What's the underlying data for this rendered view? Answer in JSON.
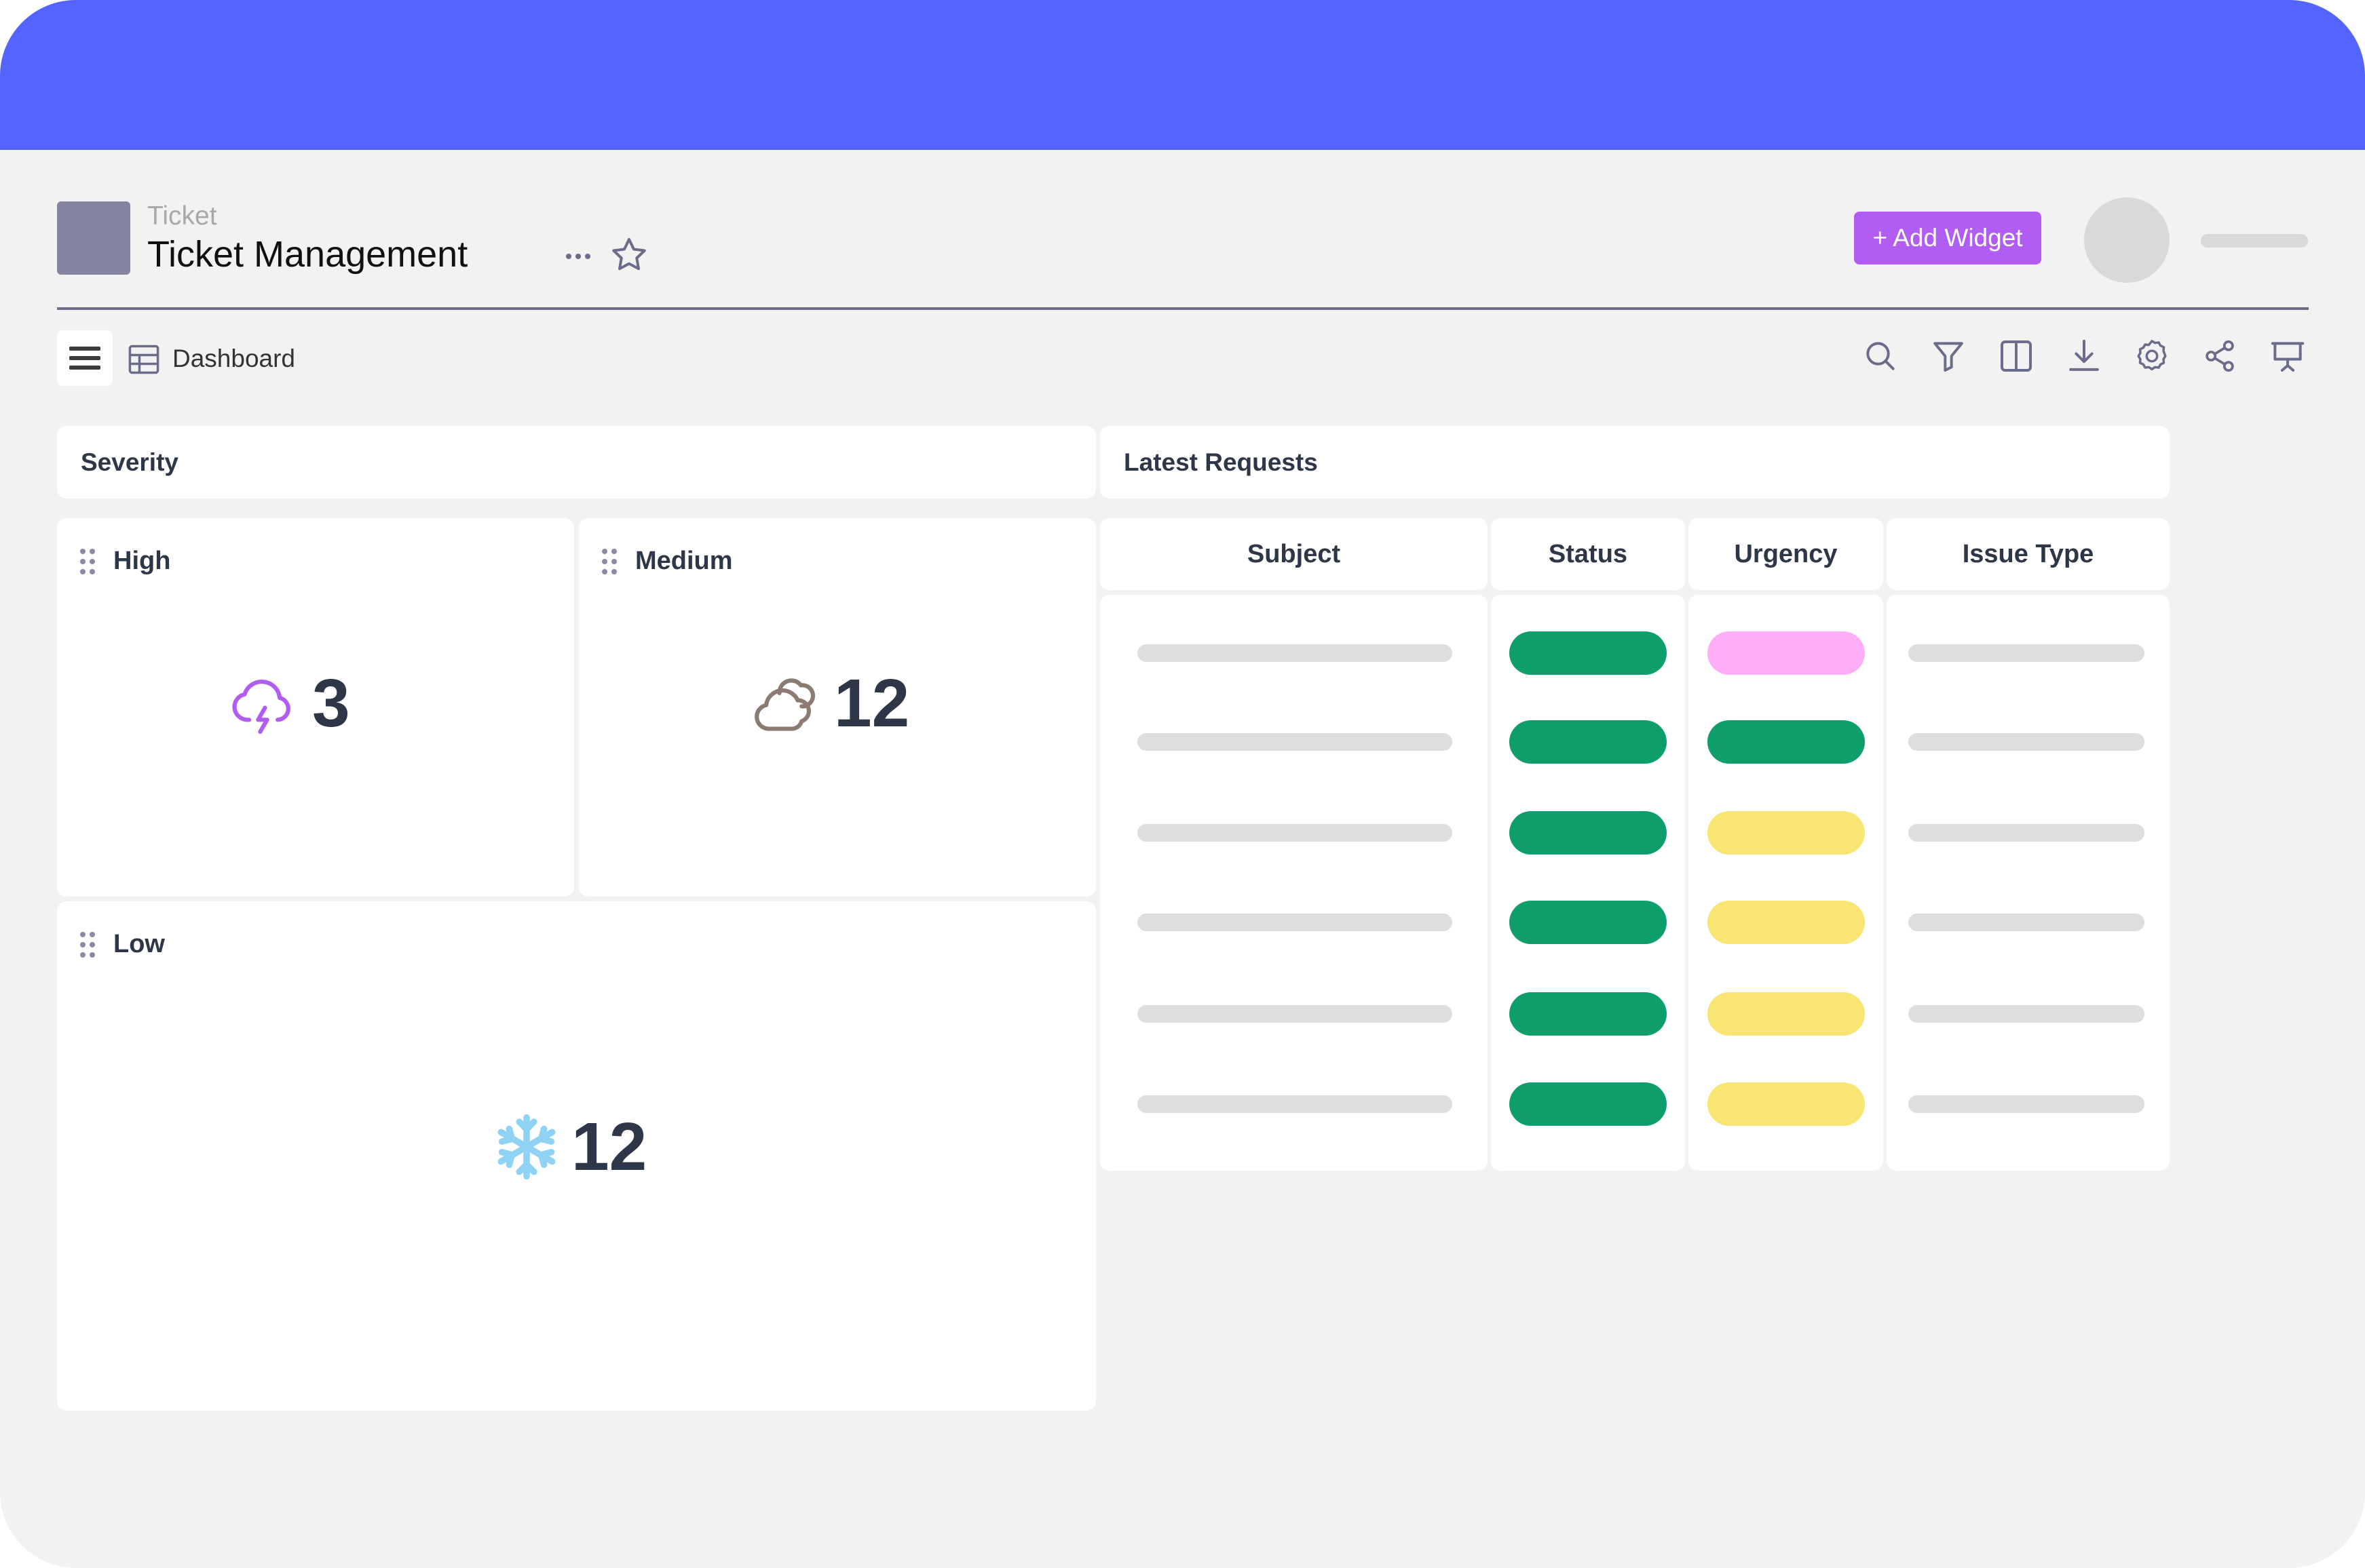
{
  "colors": {
    "topbar": "#5465ff",
    "add_widget": "#b15cf2",
    "status_green": "#0e9e6a",
    "urgency_pink": "#fdaef6",
    "urgency_green": "#0e9e6a",
    "urgency_yellow": "#f9e574",
    "placeholder_gray": "#dedede"
  },
  "header": {
    "breadcrumb": "Ticket",
    "title": "Ticket Management",
    "more_icon": "more-horizontal-icon",
    "star_icon": "star-icon",
    "add_widget_label": "+ Add Widget"
  },
  "toolbar": {
    "menu_icon": "hamburger-menu-icon",
    "view_icon": "table-grid-icon",
    "view_label": "Dashboard",
    "icons": [
      "search-icon",
      "filter-icon",
      "split-view-icon",
      "download-icon",
      "settings-icon",
      "share-icon",
      "presentation-icon"
    ]
  },
  "severity": {
    "title": "Severity",
    "cards": [
      {
        "label": "High",
        "value": "3",
        "icon": "thunderstorm-icon"
      },
      {
        "label": "Medium",
        "value": "12",
        "icon": "cloud-icon"
      },
      {
        "label": "Low",
        "value": "12",
        "icon": "snowflake-icon"
      }
    ]
  },
  "requests": {
    "title": "Latest Requests",
    "columns": [
      "Subject",
      "Status",
      "Urgency",
      "Issue Type"
    ],
    "rows": [
      {
        "status": "green",
        "urgency": "pink"
      },
      {
        "status": "green",
        "urgency": "green"
      },
      {
        "status": "green",
        "urgency": "yellow"
      },
      {
        "status": "green",
        "urgency": "yellow"
      },
      {
        "status": "green",
        "urgency": "yellow"
      },
      {
        "status": "green",
        "urgency": "yellow"
      }
    ]
  }
}
